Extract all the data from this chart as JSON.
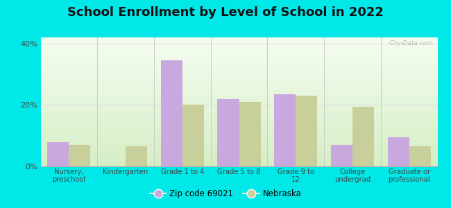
{
  "title": "School Enrollment by Level of School in 2022",
  "categories": [
    "Nursery,\npreschool",
    "Kindergarten",
    "Grade 1 to 4",
    "Grade 5 to 8",
    "Grade 9 to\n12",
    "College\nundergrad",
    "Graduate or\nprofessional"
  ],
  "zip_values": [
    8.0,
    0.0,
    34.5,
    22.0,
    23.5,
    7.0,
    9.5
  ],
  "nebraska_values": [
    7.0,
    6.5,
    20.0,
    21.0,
    23.0,
    19.5,
    6.5
  ],
  "zip_color": "#c9a8e0",
  "nebraska_color": "#c8cf9a",
  "ylim": [
    0,
    42
  ],
  "yticks": [
    0,
    20,
    40
  ],
  "ytick_labels": [
    "0%",
    "20%",
    "40%"
  ],
  "background_outer": "#00e8e8",
  "background_inner_top": "#f0f8ee",
  "background_inner_bottom": "#d4edc4",
  "zip_label": "Zip code 69021",
  "nebraska_label": "Nebraska",
  "watermark": "City-Data.com",
  "bar_width": 0.38,
  "title_fontsize": 13,
  "separator_color": "#cccccc",
  "grid_color": "#dddddd"
}
